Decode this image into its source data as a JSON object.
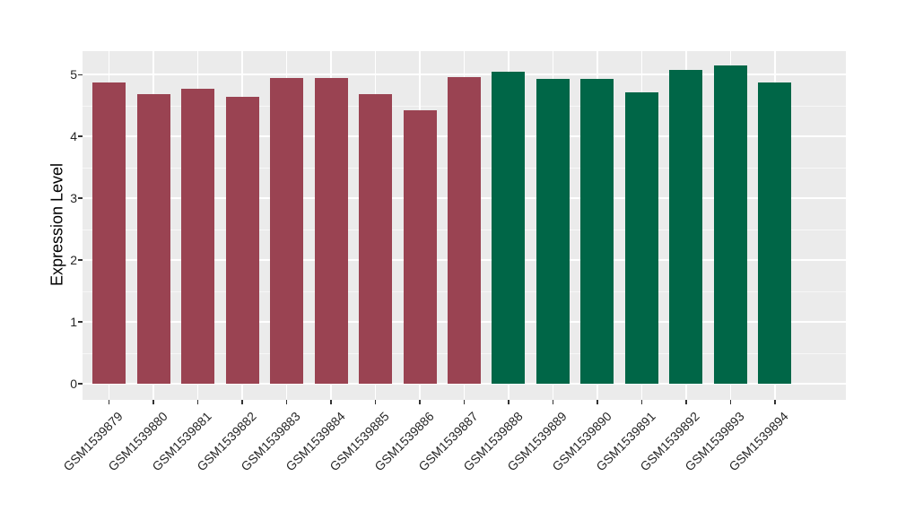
{
  "chart_data": {
    "type": "bar",
    "title": "",
    "xlabel": "",
    "ylabel": "Expression Level",
    "categories": [
      "GSM1539879",
      "GSM1539880",
      "GSM1539881",
      "GSM1539882",
      "GSM1539883",
      "GSM1539884",
      "GSM1539885",
      "GSM1539886",
      "GSM1539887",
      "GSM1539888",
      "GSM1539889",
      "GSM1539890",
      "GSM1539891",
      "GSM1539892",
      "GSM1539893",
      "GSM1539894"
    ],
    "values": [
      4.87,
      4.68,
      4.77,
      4.64,
      4.94,
      4.94,
      4.68,
      4.43,
      4.96,
      5.05,
      4.93,
      4.93,
      4.72,
      5.08,
      5.15,
      4.87
    ],
    "bar_colors": [
      "#9a4352",
      "#9a4352",
      "#9a4352",
      "#9a4352",
      "#9a4352",
      "#9a4352",
      "#9a4352",
      "#9a4352",
      "#9a4352",
      "#006647",
      "#006647",
      "#006647",
      "#006647",
      "#006647",
      "#006647",
      "#006647"
    ],
    "color_groups": [
      {
        "color": "#9a4352",
        "first_category": "GSM1539879",
        "last_category": "GSM1539887"
      },
      {
        "color": "#006647",
        "first_category": "GSM1539888",
        "last_category": "GSM1539894"
      }
    ],
    "yticks": [
      "0",
      "1",
      "2",
      "3",
      "4",
      "5"
    ],
    "ylim": [
      -0.26,
      5.38
    ],
    "grid": "white major horizontal at integers, white minor at halves, white vertical at each bar center",
    "legend": "none",
    "x_tick_label_rotation_deg": 45
  },
  "style": {
    "panel_bg": "#ebebeb",
    "grid_major_color": "#ffffff",
    "grid_minor_color": "rgba(255,255,255,0.62)",
    "tick_mark_color": "#333333",
    "tick_label_color": "#262626",
    "axis_title_color": "#000000",
    "page_bg": "#ffffff"
  }
}
